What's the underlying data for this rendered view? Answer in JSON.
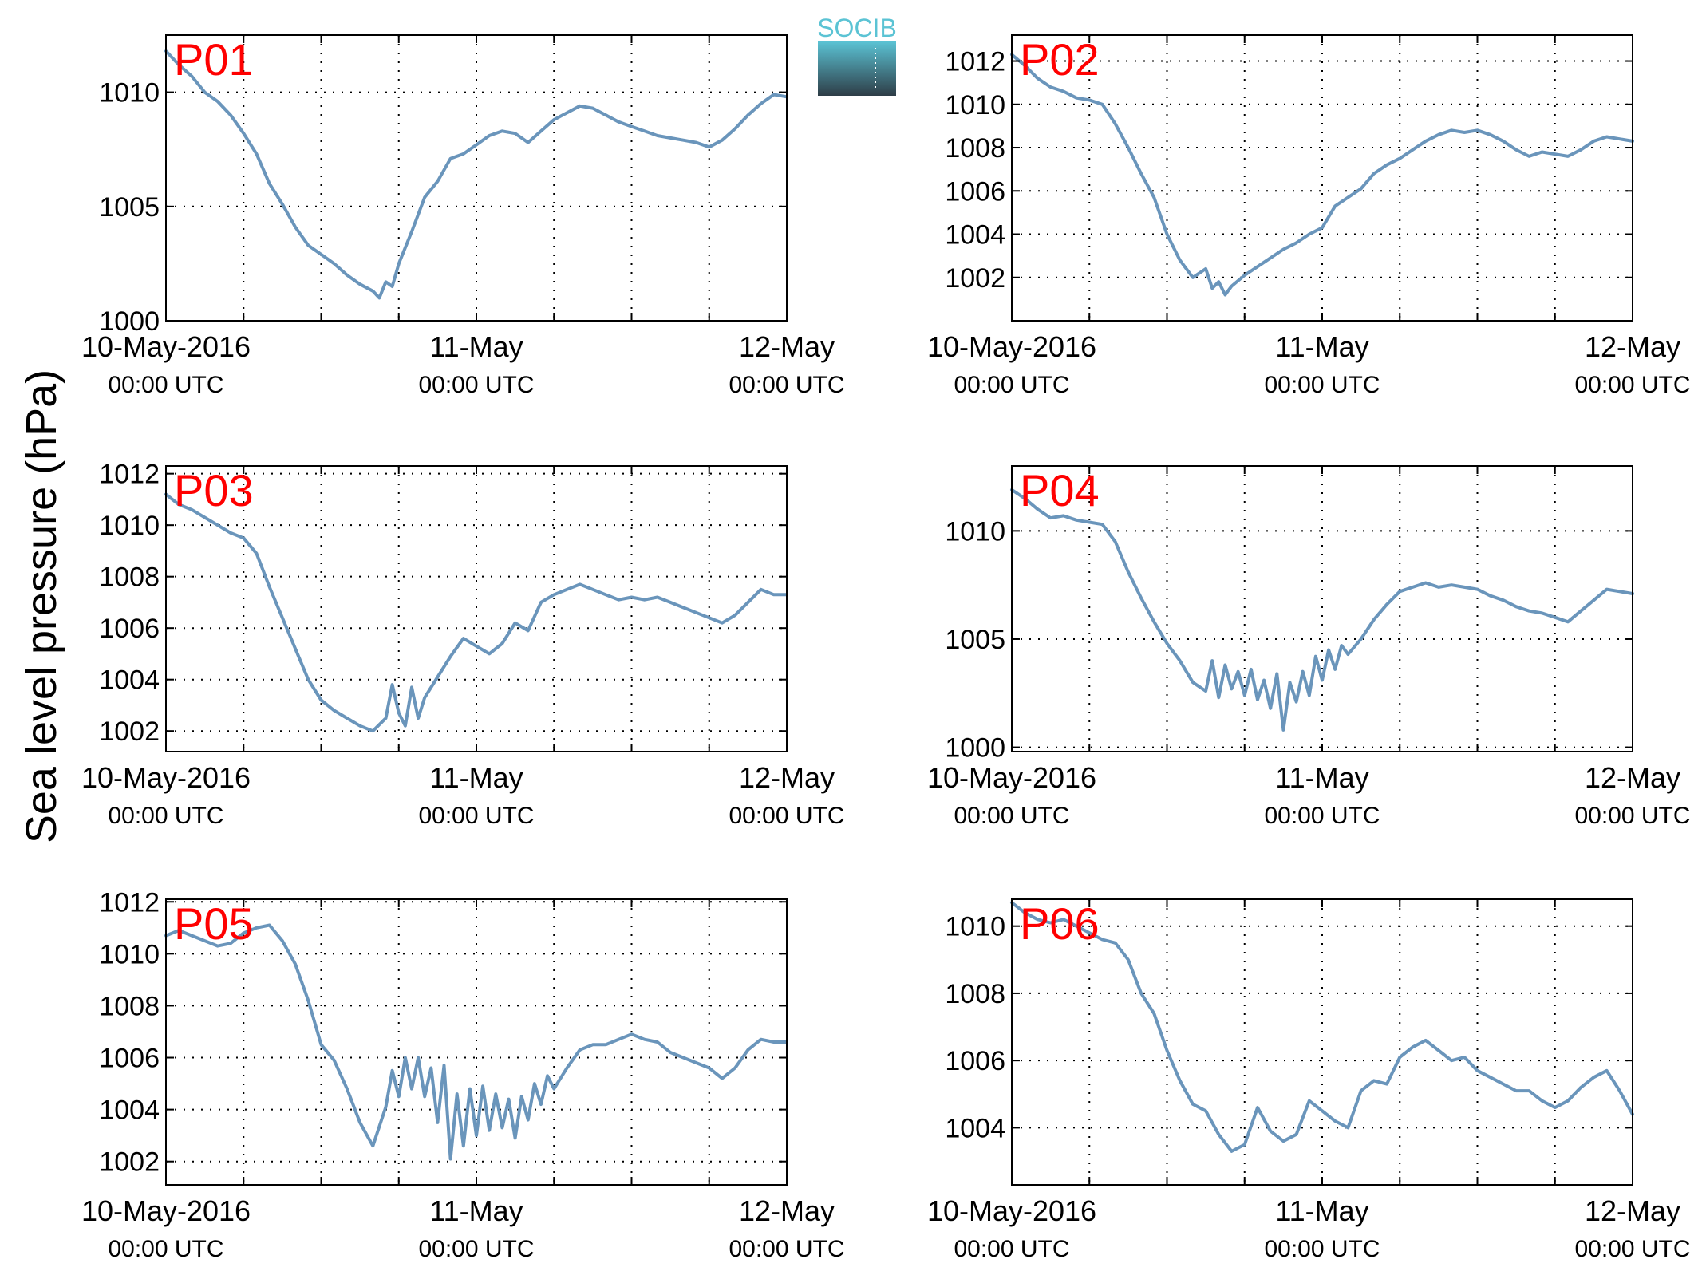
{
  "figure": {
    "ylabel": "Sea level pressure (hPa)",
    "logo_text": "SOCIB"
  },
  "x_ticks": [
    {
      "t": 0,
      "date": "10-May-2016",
      "time": "00:00 UTC"
    },
    {
      "t": 24,
      "date": "11-May",
      "time": "00:00 UTC"
    },
    {
      "t": 48,
      "date": "12-May",
      "time": "00:00 UTC"
    }
  ],
  "colors": {
    "line": "#6a95bb",
    "panel_label": "#ff0000",
    "grid": "#000000",
    "logo_top": "#5bc3d4",
    "logo_bottom": "#2e3d47"
  },
  "chart_data": [
    {
      "type": "line",
      "title": "P01",
      "xlim": [
        0,
        48
      ],
      "ylim": [
        1000,
        1012.5
      ],
      "yticks": [
        1000,
        1005,
        1010
      ],
      "x": [
        0,
        1,
        2,
        3,
        4,
        5,
        6,
        7,
        8,
        9,
        10,
        11,
        12,
        13,
        14,
        15,
        16,
        16.5,
        17,
        17.5,
        18,
        19,
        20,
        21,
        22,
        23,
        24,
        25,
        26,
        27,
        28,
        29,
        30,
        31,
        32,
        33,
        34,
        35,
        36,
        37,
        38,
        39,
        40,
        41,
        42,
        43,
        44,
        45,
        46,
        47,
        48
      ],
      "values": [
        1011.8,
        1011.2,
        1010.7,
        1010.0,
        1009.6,
        1009.0,
        1008.2,
        1007.3,
        1006.0,
        1005.1,
        1004.1,
        1003.3,
        1002.9,
        1002.5,
        1002.0,
        1001.6,
        1001.3,
        1001.0,
        1001.7,
        1001.5,
        1002.5,
        1003.9,
        1005.4,
        1006.1,
        1007.1,
        1007.3,
        1007.7,
        1008.1,
        1008.3,
        1008.2,
        1007.8,
        1008.3,
        1008.8,
        1009.1,
        1009.4,
        1009.3,
        1009.0,
        1008.7,
        1008.5,
        1008.3,
        1008.1,
        1008.0,
        1007.9,
        1007.8,
        1007.6,
        1007.9,
        1008.4,
        1009.0,
        1009.5,
        1009.9,
        1009.8
      ]
    },
    {
      "type": "line",
      "title": "P02",
      "xlim": [
        0,
        48
      ],
      "ylim": [
        1000,
        1013.2
      ],
      "yticks": [
        1002,
        1004,
        1006,
        1008,
        1010,
        1012
      ],
      "x": [
        0,
        1,
        2,
        3,
        4,
        5,
        6,
        7,
        8,
        9,
        10,
        11,
        12,
        13,
        14,
        15,
        15.5,
        16,
        16.5,
        17,
        18,
        19,
        20,
        21,
        22,
        23,
        24,
        25,
        26,
        27,
        28,
        29,
        30,
        31,
        32,
        33,
        34,
        35,
        36,
        37,
        38,
        39,
        40,
        41,
        42,
        43,
        44,
        45,
        46,
        47,
        48
      ],
      "values": [
        1012.3,
        1011.8,
        1011.2,
        1010.8,
        1010.6,
        1010.3,
        1010.2,
        1010.0,
        1009.1,
        1008.0,
        1006.8,
        1005.7,
        1004.0,
        1002.8,
        1002.0,
        1002.4,
        1001.5,
        1001.8,
        1001.2,
        1001.6,
        1002.1,
        1002.5,
        1002.9,
        1003.3,
        1003.6,
        1004.0,
        1004.3,
        1005.3,
        1005.7,
        1006.1,
        1006.8,
        1007.2,
        1007.5,
        1007.9,
        1008.3,
        1008.6,
        1008.8,
        1008.7,
        1008.8,
        1008.6,
        1008.3,
        1007.9,
        1007.6,
        1007.8,
        1007.7,
        1007.6,
        1007.9,
        1008.3,
        1008.5,
        1008.4,
        1008.3
      ]
    },
    {
      "type": "line",
      "title": "P03",
      "xlim": [
        0,
        48
      ],
      "ylim": [
        1001.2,
        1012.3
      ],
      "yticks": [
        1002,
        1004,
        1006,
        1008,
        1010,
        1012
      ],
      "x": [
        0,
        1,
        2,
        3,
        4,
        5,
        6,
        7,
        8,
        9,
        10,
        11,
        12,
        13,
        14,
        15,
        16,
        17,
        17.5,
        18,
        18.5,
        19,
        19.5,
        20,
        21,
        22,
        23,
        24,
        25,
        26,
        27,
        28,
        29,
        30,
        31,
        32,
        33,
        34,
        35,
        36,
        37,
        38,
        39,
        40,
        41,
        42,
        43,
        44,
        45,
        46,
        47,
        48
      ],
      "values": [
        1011.2,
        1010.8,
        1010.6,
        1010.3,
        1010.0,
        1009.7,
        1009.5,
        1008.9,
        1007.6,
        1006.4,
        1005.2,
        1004.0,
        1003.2,
        1002.8,
        1002.5,
        1002.2,
        1002.0,
        1002.5,
        1003.8,
        1002.7,
        1002.2,
        1003.7,
        1002.5,
        1003.3,
        1004.1,
        1004.9,
        1005.6,
        1005.3,
        1005.0,
        1005.4,
        1006.2,
        1005.9,
        1007.0,
        1007.3,
        1007.5,
        1007.7,
        1007.5,
        1007.3,
        1007.1,
        1007.2,
        1007.1,
        1007.2,
        1007.0,
        1006.8,
        1006.6,
        1006.4,
        1006.2,
        1006.5,
        1007.0,
        1007.5,
        1007.3,
        1007.3
      ]
    },
    {
      "type": "line",
      "title": "P04",
      "xlim": [
        0,
        48
      ],
      "ylim": [
        999.8,
        1013
      ],
      "yticks": [
        1000,
        1005,
        1010
      ],
      "x": [
        0,
        1,
        2,
        3,
        4,
        5,
        6,
        7,
        8,
        9,
        10,
        11,
        12,
        13,
        14,
        15,
        15.5,
        16,
        16.5,
        17,
        17.5,
        18,
        18.5,
        19,
        19.5,
        20,
        20.5,
        21,
        21.5,
        22,
        22.5,
        23,
        23.5,
        24,
        24.5,
        25,
        25.5,
        26,
        27,
        28,
        29,
        30,
        31,
        32,
        33,
        34,
        35,
        36,
        37,
        38,
        39,
        40,
        41,
        42,
        43,
        44,
        45,
        46,
        47,
        48
      ],
      "values": [
        1011.9,
        1011.5,
        1011.0,
        1010.6,
        1010.7,
        1010.5,
        1010.4,
        1010.3,
        1009.5,
        1008.1,
        1006.9,
        1005.8,
        1004.8,
        1004.0,
        1003.0,
        1002.6,
        1004.0,
        1002.3,
        1003.8,
        1002.7,
        1003.5,
        1002.4,
        1003.6,
        1002.2,
        1003.1,
        1001.8,
        1003.4,
        1000.8,
        1003.0,
        1002.1,
        1003.5,
        1002.4,
        1004.2,
        1003.1,
        1004.5,
        1003.6,
        1004.7,
        1004.3,
        1005.0,
        1005.9,
        1006.6,
        1007.2,
        1007.4,
        1007.6,
        1007.4,
        1007.5,
        1007.4,
        1007.3,
        1007.0,
        1006.8,
        1006.5,
        1006.3,
        1006.2,
        1006.0,
        1005.8,
        1006.3,
        1006.8,
        1007.3,
        1007.2,
        1007.1
      ]
    },
    {
      "type": "line",
      "title": "P05",
      "xlim": [
        0,
        48
      ],
      "ylim": [
        1001.1,
        1012.1
      ],
      "yticks": [
        1002,
        1004,
        1006,
        1008,
        1010,
        1012
      ],
      "x": [
        0,
        1,
        2,
        3,
        4,
        5,
        6,
        7,
        8,
        9,
        10,
        11,
        12,
        13,
        14,
        15,
        16,
        17,
        17.5,
        18,
        18.5,
        19,
        19.5,
        20,
        20.5,
        21,
        21.5,
        22,
        22.5,
        23,
        23.5,
        24,
        24.5,
        25,
        25.5,
        26,
        26.5,
        27,
        27.5,
        28,
        28.5,
        29,
        29.5,
        30,
        31,
        32,
        33,
        34,
        35,
        36,
        37,
        38,
        39,
        40,
        41,
        42,
        43,
        44,
        45,
        46,
        47,
        48
      ],
      "values": [
        1010.7,
        1010.9,
        1010.7,
        1010.5,
        1010.3,
        1010.4,
        1010.8,
        1011.0,
        1011.1,
        1010.5,
        1009.6,
        1008.2,
        1006.5,
        1005.9,
        1004.8,
        1003.5,
        1002.6,
        1004.1,
        1005.5,
        1004.5,
        1006.0,
        1004.8,
        1006.0,
        1004.5,
        1005.6,
        1003.5,
        1005.7,
        1002.1,
        1004.6,
        1002.6,
        1004.8,
        1003.0,
        1004.9,
        1003.2,
        1004.6,
        1003.3,
        1004.4,
        1002.9,
        1004.5,
        1003.6,
        1005.0,
        1004.2,
        1005.3,
        1004.8,
        1005.6,
        1006.3,
        1006.5,
        1006.5,
        1006.7,
        1006.9,
        1006.7,
        1006.6,
        1006.2,
        1006.0,
        1005.8,
        1005.6,
        1005.2,
        1005.6,
        1006.3,
        1006.7,
        1006.6,
        1006.6
      ]
    },
    {
      "type": "line",
      "title": "P06",
      "xlim": [
        0,
        48
      ],
      "ylim": [
        1002.3,
        1010.8
      ],
      "yticks": [
        1004,
        1006,
        1008,
        1010
      ],
      "x": [
        0,
        1,
        2,
        3,
        4,
        5,
        6,
        7,
        8,
        9,
        10,
        11,
        12,
        13,
        14,
        15,
        16,
        17,
        18,
        19,
        20,
        21,
        22,
        23,
        24,
        25,
        26,
        27,
        28,
        29,
        30,
        31,
        32,
        33,
        34,
        35,
        36,
        37,
        38,
        39,
        40,
        41,
        42,
        43,
        44,
        45,
        46,
        47,
        48
      ],
      "values": [
        1010.7,
        1010.4,
        1010.2,
        1010.1,
        1010.2,
        1010.0,
        1009.8,
        1009.6,
        1009.5,
        1009.0,
        1008.0,
        1007.4,
        1006.3,
        1005.4,
        1004.7,
        1004.5,
        1003.8,
        1003.3,
        1003.5,
        1004.6,
        1003.9,
        1003.6,
        1003.8,
        1004.8,
        1004.5,
        1004.2,
        1004.0,
        1005.1,
        1005.4,
        1005.3,
        1006.1,
        1006.4,
        1006.6,
        1006.3,
        1006.0,
        1006.1,
        1005.7,
        1005.5,
        1005.3,
        1005.1,
        1005.1,
        1004.8,
        1004.6,
        1004.8,
        1005.2,
        1005.5,
        1005.7,
        1005.1,
        1004.4
      ]
    }
  ]
}
